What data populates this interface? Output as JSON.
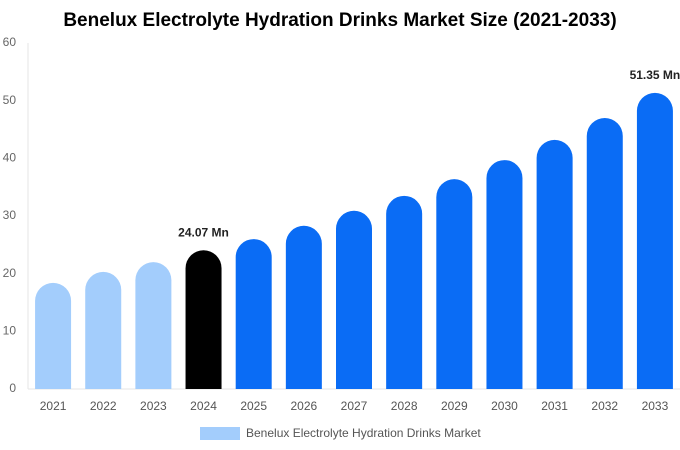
{
  "chart_data": {
    "type": "bar",
    "title": "Benelux Electrolyte Hydration Drinks Market Size (2021-2033)",
    "categories": [
      "2021",
      "2022",
      "2023",
      "2024",
      "2025",
      "2026",
      "2027",
      "2028",
      "2029",
      "2030",
      "2031",
      "2032",
      "2033"
    ],
    "series": [
      {
        "name": "Benelux Electrolyte Hydration Drinks Market",
        "color": "#a3cdfc",
        "values": [
          18.4,
          20.3,
          22.0,
          24.07,
          26.0,
          28.3,
          30.9,
          33.5,
          36.4,
          39.7,
          43.2,
          47.0,
          51.35
        ],
        "value_labels": [
          null,
          null,
          null,
          "24.07 Mn",
          null,
          null,
          null,
          null,
          null,
          null,
          null,
          null,
          "51.35 Mn"
        ],
        "colors": [
          "#a3cdfc",
          "#a3cdfc",
          "#a3cdfc",
          "#000000",
          "#0a6cf5",
          "#0a6cf5",
          "#0a6cf5",
          "#0a6cf5",
          "#0a6cf5",
          "#0a6cf5",
          "#0a6cf5",
          "#0a6cf5",
          "#0a6cf5"
        ]
      }
    ],
    "ylim": [
      0,
      60
    ],
    "yticks": [
      0,
      10,
      20,
      30,
      40,
      50,
      60
    ],
    "grid": false
  }
}
